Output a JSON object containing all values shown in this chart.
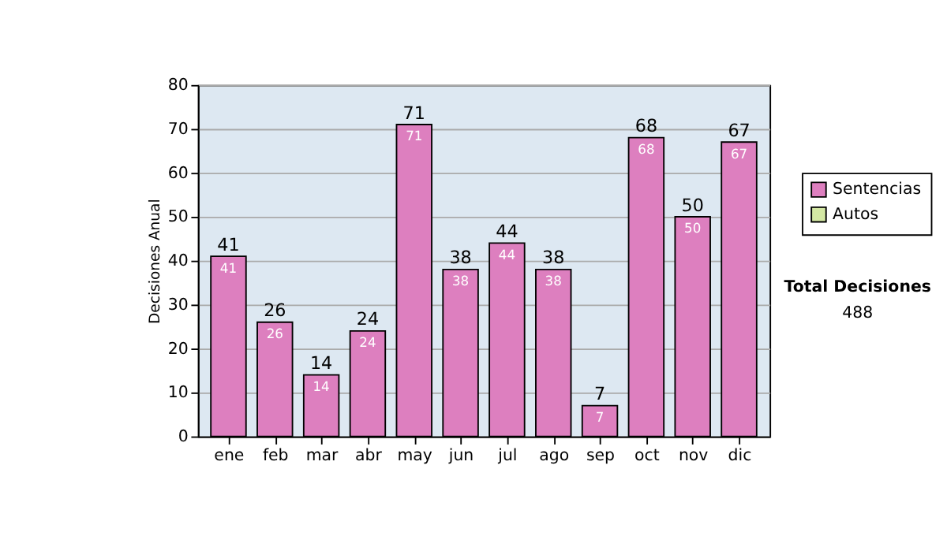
{
  "chart_data": {
    "type": "bar",
    "stacked": true,
    "ylabel": "Decisiones Anual",
    "categories": [
      "ene",
      "feb",
      "mar",
      "abr",
      "may",
      "jun",
      "jul",
      "ago",
      "sep",
      "oct",
      "nov",
      "dic"
    ],
    "series": [
      {
        "name": "Sentencias",
        "color": "#dd7fbf",
        "values": [
          41,
          26,
          14,
          24,
          71,
          38,
          44,
          38,
          7,
          68,
          50,
          67
        ]
      },
      {
        "name": "Autos",
        "color": "#d4e8a4",
        "values": [
          null,
          null,
          null,
          null,
          null,
          null,
          null,
          null,
          null,
          null,
          null,
          null
        ]
      }
    ],
    "data_labels": true,
    "totals": [
      "41",
      "26",
      "14",
      "24",
      "71",
      "38",
      "44",
      "38",
      "7",
      "68",
      "50",
      "67"
    ],
    "ylim": [
      0,
      80
    ],
    "yticks": [
      0,
      10,
      20,
      30,
      40,
      50,
      60,
      70,
      80
    ],
    "grid": "y",
    "legend": "right",
    "annotations": [
      "Total Decisiones",
      "488"
    ]
  }
}
